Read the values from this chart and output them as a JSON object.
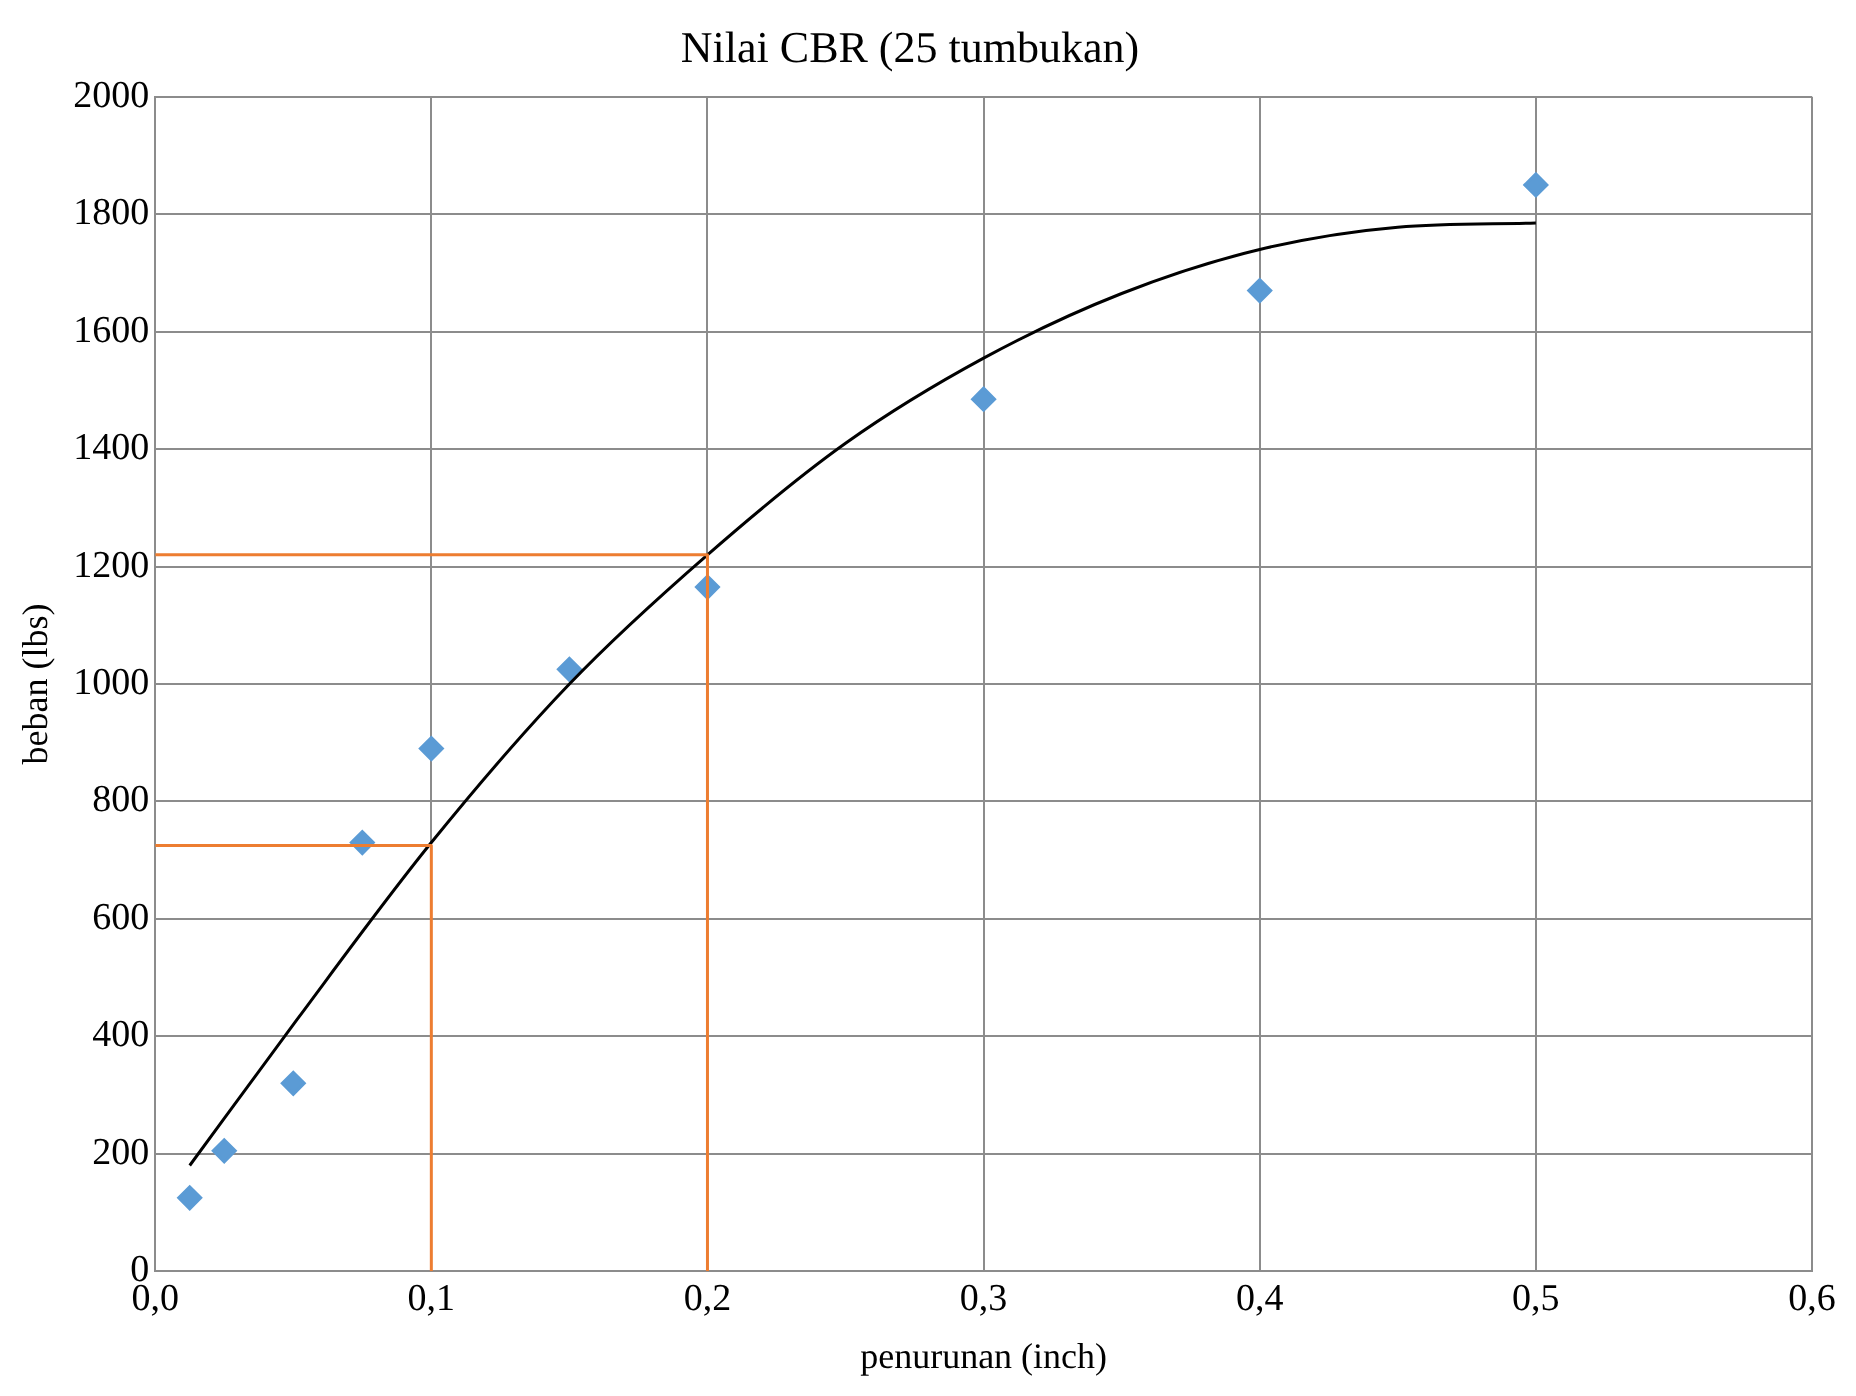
{
  "chart_data": {
    "type": "scatter",
    "title": "Nilai CBR (25 tumbukan)",
    "xlabel": "penurunan (inch)",
    "ylabel": "beban (lbs)",
    "xlim": [
      0,
      0.6
    ],
    "xticks": [
      {
        "value": 0,
        "label": "0,0"
      },
      {
        "value": 0.1,
        "label": "0,1"
      },
      {
        "value": 0.2,
        "label": "0,2"
      },
      {
        "value": 0.3,
        "label": "0,3"
      },
      {
        "value": 0.4,
        "label": "0,4"
      },
      {
        "value": 0.5,
        "label": "0,5"
      },
      {
        "value": 0.6,
        "label": "0,6"
      }
    ],
    "ylim": [
      0,
      2000
    ],
    "yticks": [
      0,
      200,
      400,
      600,
      800,
      1000,
      1200,
      1400,
      1600,
      1800,
      2000
    ],
    "grid": true,
    "legend": false,
    "series": [
      {
        "marker": "diamond",
        "color": "#5b9bd5",
        "x": [
          0.0125,
          0.025,
          0.05,
          0.075,
          0.1,
          0.15,
          0.2,
          0.3,
          0.4,
          0.5
        ],
        "values": [
          125,
          205,
          320,
          730,
          890,
          1025,
          1165,
          1485,
          1670,
          1850
        ]
      },
      {
        "type": "line",
        "marker": "none",
        "color": "#000000",
        "x": [
          0.0125,
          0.05,
          0.1,
          0.15,
          0.2,
          0.25,
          0.3,
          0.35,
          0.4,
          0.45,
          0.5
        ],
        "values": [
          180,
          420,
          730,
          1000,
          1220,
          1410,
          1555,
          1665,
          1740,
          1778,
          1785
        ]
      },
      {
        "type": "line",
        "marker": "none",
        "color": "#ed7d31",
        "x": [
          0,
          0.1,
          0.1
        ],
        "values": [
          725,
          725,
          0
        ]
      },
      {
        "type": "line",
        "marker": "none",
        "color": "#ed7d31",
        "x": [
          0,
          0.2,
          0.2
        ],
        "values": [
          1220,
          1220,
          0
        ]
      }
    ]
  }
}
